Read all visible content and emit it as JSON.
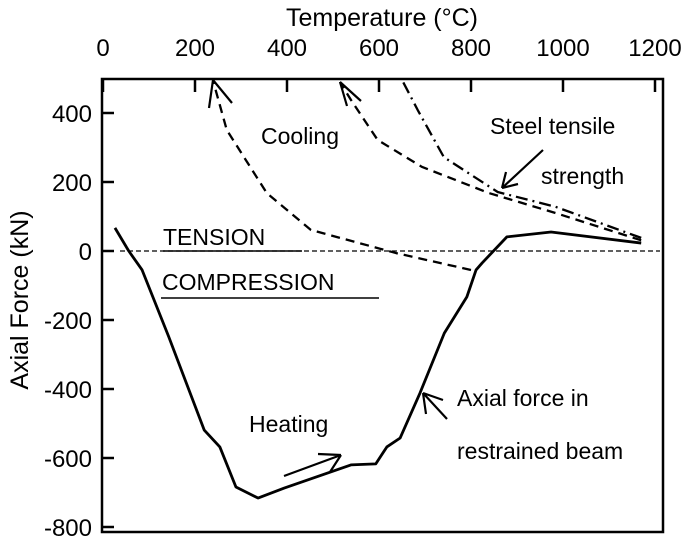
{
  "chart_data": {
    "type": "line",
    "title": "",
    "xlabel": "Temperature (°C)",
    "ylabel": "Axial Force (kN)",
    "xaxis_position": "top",
    "xlim": [
      0,
      1200
    ],
    "ylim": [
      -815,
      500
    ],
    "xticks": [
      0,
      200,
      400,
      600,
      800,
      1000,
      1200
    ],
    "yticks": [
      400,
      200,
      0,
      -200,
      -400,
      -600,
      -800
    ],
    "grid": false,
    "series": [
      {
        "name": "Axial force in restrained beam",
        "style": "solid",
        "x": [
          26,
          56,
          85,
          143,
          220,
          254,
          289,
          337,
          394,
          539,
          593,
          617,
          646,
          689,
          742,
          791,
          811,
          824,
          878,
          974,
          1170
        ],
        "y": [
          67,
          0,
          -55,
          -249,
          -519,
          -568,
          -684,
          -716,
          -687,
          -620,
          -617,
          -568,
          -542,
          -412,
          -238,
          -133,
          -55,
          -35,
          41,
          55,
          23
        ]
      },
      {
        "style": "dashed",
        "x": [
          800,
          637,
          452,
          356,
          269,
          240
        ],
        "y": [
          -55,
          -6,
          61,
          168,
          351,
          490
        ]
      },
      {
        "style": "dashed",
        "x": [
          1170,
          984,
          839,
          693,
          597,
          539,
          515
        ],
        "y": [
          31,
          110,
          168,
          244,
          322,
          438,
          490
        ]
      },
      {
        "name": "Steel tensile strength",
        "style": "dash-dot",
        "x": [
          1170,
          984,
          858,
          741,
          684,
          650
        ],
        "y": [
          38,
          128,
          171,
          272,
          409,
          496
        ]
      }
    ],
    "annotations": {
      "cooling": "Cooling",
      "steel_1": "Steel tensile",
      "steel_2": "strength",
      "tension": "TENSION",
      "compression": "COMPRESSION",
      "heating": "Heating",
      "axial_1": "Axial force in",
      "axial_2": "restrained beam"
    }
  }
}
